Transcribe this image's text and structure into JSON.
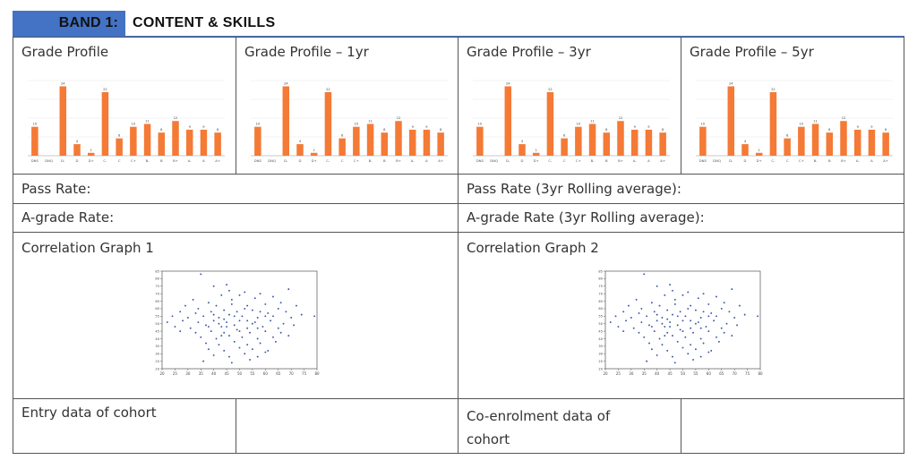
{
  "band": {
    "label": "BAND 1:",
    "title": "CONTENT & SKILLS"
  },
  "rows": {
    "grade_profiles": [
      "Grade Profile",
      "Grade Profile – 1yr",
      "Grade Profile – 3yr",
      "Grade Profile – 5yr"
    ],
    "pass_rate": "Pass Rate:",
    "pass_rate_rolling": "Pass Rate (3yr Rolling average):",
    "a_grade_rate": "A-grade Rate:",
    "a_grade_rate_rolling": "A-grade Rate (3yr Rolling average):",
    "correlation_1": "Correlation Graph 1",
    "correlation_2": "Correlation Graph 2",
    "entry_data": "Entry data of cohort",
    "coenrolment_data": "Co-enrolment data of cohort"
  },
  "colors": {
    "band_blue": "#4472c4",
    "bar_orange": "#f47a36",
    "dot_blue": "#3a56a8"
  },
  "chart_data": [
    {
      "type": "bar",
      "categories": [
        "DNS",
        "DNQ",
        "D-",
        "D",
        "D+",
        "C-",
        "C",
        "C+",
        "B-",
        "B",
        "B+",
        "A-",
        "A",
        "A+"
      ],
      "values": [
        10,
        0,
        24,
        4,
        1,
        22,
        6,
        10,
        11,
        8,
        12,
        9,
        9,
        8
      ],
      "ylim": [
        0,
        26
      ]
    },
    {
      "type": "bar",
      "categories": [
        "DNS",
        "DNQ",
        "D-",
        "D",
        "D+",
        "C-",
        "C",
        "C+",
        "B-",
        "B",
        "B+",
        "A-",
        "A",
        "A+"
      ],
      "values": [
        10,
        0,
        24,
        4,
        1,
        22,
        6,
        10,
        11,
        8,
        12,
        9,
        9,
        8
      ],
      "ylim": [
        0,
        26
      ]
    },
    {
      "type": "bar",
      "categories": [
        "DNS",
        "DNQ",
        "D-",
        "D",
        "D+",
        "C-",
        "C",
        "C+",
        "B-",
        "B",
        "B+",
        "A-",
        "A",
        "A+"
      ],
      "values": [
        10,
        0,
        24,
        4,
        1,
        22,
        6,
        10,
        11,
        8,
        12,
        9,
        9,
        8
      ],
      "ylim": [
        0,
        26
      ]
    },
    {
      "type": "bar",
      "categories": [
        "DNS",
        "DNQ",
        "D-",
        "D",
        "D+",
        "C-",
        "C",
        "C+",
        "B-",
        "B",
        "B+",
        "A-",
        "A",
        "A+"
      ],
      "values": [
        10,
        0,
        24,
        4,
        1,
        22,
        6,
        10,
        11,
        8,
        12,
        9,
        9,
        8
      ],
      "ylim": [
        0,
        26
      ]
    },
    {
      "type": "scatter",
      "xticks": [
        "20",
        "25",
        "30",
        "35",
        "40",
        "45",
        "50",
        "55",
        "60",
        "65",
        "70",
        "75",
        "80"
      ],
      "yticks": [
        "20",
        "25",
        "30",
        "35",
        "40",
        "45",
        "50",
        "55",
        "60",
        "65",
        "70",
        "75",
        "80",
        "85"
      ],
      "xlim": [
        20,
        80
      ],
      "ylim": [
        20,
        85
      ],
      "points": [
        [
          35,
          83
        ],
        [
          40,
          75
        ],
        [
          45,
          76
        ],
        [
          69,
          73
        ],
        [
          43,
          69
        ],
        [
          38,
          64
        ],
        [
          50,
          69
        ],
        [
          56,
          67
        ],
        [
          32,
          66
        ],
        [
          46,
          72
        ],
        [
          52,
          71
        ],
        [
          58,
          70
        ],
        [
          63,
          68
        ],
        [
          29,
          62
        ],
        [
          34,
          60
        ],
        [
          41,
          62
        ],
        [
          47,
          63
        ],
        [
          53,
          62
        ],
        [
          60,
          63
        ],
        [
          66,
          64
        ],
        [
          72,
          62
        ],
        [
          27,
          58
        ],
        [
          33,
          57
        ],
        [
          39,
          58
        ],
        [
          44,
          59
        ],
        [
          49,
          58
        ],
        [
          55,
          59
        ],
        [
          61,
          57
        ],
        [
          68,
          58
        ],
        [
          74,
          56
        ],
        [
          24,
          55
        ],
        [
          30,
          54
        ],
        [
          36,
          55
        ],
        [
          42,
          54
        ],
        [
          46,
          56
        ],
        [
          51,
          55
        ],
        [
          57,
          54
        ],
        [
          63,
          55
        ],
        [
          70,
          54
        ],
        [
          79,
          55
        ],
        [
          22,
          51
        ],
        [
          28,
          52
        ],
        [
          34,
          51
        ],
        [
          40,
          52
        ],
        [
          45,
          51
        ],
        [
          50,
          52
        ],
        [
          56,
          51
        ],
        [
          62,
          52
        ],
        [
          67,
          50
        ],
        [
          25,
          48
        ],
        [
          31,
          47
        ],
        [
          37,
          49
        ],
        [
          43,
          48
        ],
        [
          48,
          49
        ],
        [
          53,
          47
        ],
        [
          59,
          48
        ],
        [
          65,
          47
        ],
        [
          71,
          49
        ],
        [
          27,
          45
        ],
        [
          33,
          44
        ],
        [
          39,
          45
        ],
        [
          44,
          44
        ],
        [
          49,
          46
        ],
        [
          54,
          44
        ],
        [
          60,
          45
        ],
        [
          66,
          44
        ],
        [
          35,
          41
        ],
        [
          41,
          40
        ],
        [
          46,
          42
        ],
        [
          51,
          41
        ],
        [
          57,
          40
        ],
        [
          63,
          41
        ],
        [
          69,
          42
        ],
        [
          37,
          37
        ],
        [
          42,
          36
        ],
        [
          48,
          38
        ],
        [
          53,
          36
        ],
        [
          58,
          37
        ],
        [
          64,
          38
        ],
        [
          38,
          33
        ],
        [
          44,
          32
        ],
        [
          50,
          34
        ],
        [
          55,
          33
        ],
        [
          61,
          32
        ],
        [
          40,
          29
        ],
        [
          46,
          28
        ],
        [
          52,
          30
        ],
        [
          57,
          28
        ],
        [
          36,
          25
        ],
        [
          47,
          24
        ],
        [
          54,
          26
        ],
        [
          60,
          31
        ],
        [
          43,
          42
        ],
        [
          48,
          55
        ],
        [
          52,
          60
        ],
        [
          45,
          48
        ],
        [
          55,
          50
        ],
        [
          58,
          58
        ],
        [
          40,
          56
        ],
        [
          50,
          45
        ],
        [
          42,
          50
        ],
        [
          60,
          55
        ],
        [
          38,
          48
        ],
        [
          65,
          60
        ],
        [
          47,
          66
        ],
        [
          53,
          52
        ],
        [
          44,
          53
        ],
        [
          57,
          47
        ]
      ]
    },
    {
      "type": "scatter",
      "xticks": [
        "20",
        "25",
        "30",
        "35",
        "40",
        "45",
        "50",
        "55",
        "60",
        "65",
        "70",
        "75",
        "80"
      ],
      "yticks": [
        "20",
        "25",
        "30",
        "35",
        "40",
        "45",
        "50",
        "55",
        "60",
        "65",
        "70",
        "75",
        "80",
        "85"
      ],
      "xlim": [
        20,
        80
      ],
      "ylim": [
        20,
        85
      ],
      "points": [
        [
          35,
          83
        ],
        [
          40,
          75
        ],
        [
          45,
          76
        ],
        [
          69,
          73
        ],
        [
          43,
          69
        ],
        [
          38,
          64
        ],
        [
          50,
          69
        ],
        [
          56,
          67
        ],
        [
          32,
          66
        ],
        [
          46,
          72
        ],
        [
          52,
          71
        ],
        [
          58,
          70
        ],
        [
          63,
          68
        ],
        [
          29,
          62
        ],
        [
          34,
          60
        ],
        [
          41,
          62
        ],
        [
          47,
          63
        ],
        [
          53,
          62
        ],
        [
          60,
          63
        ],
        [
          66,
          64
        ],
        [
          72,
          62
        ],
        [
          27,
          58
        ],
        [
          33,
          57
        ],
        [
          39,
          58
        ],
        [
          44,
          59
        ],
        [
          49,
          58
        ],
        [
          55,
          59
        ],
        [
          61,
          57
        ],
        [
          68,
          58
        ],
        [
          74,
          56
        ],
        [
          24,
          55
        ],
        [
          30,
          54
        ],
        [
          36,
          55
        ],
        [
          42,
          54
        ],
        [
          46,
          56
        ],
        [
          51,
          55
        ],
        [
          57,
          54
        ],
        [
          63,
          55
        ],
        [
          70,
          54
        ],
        [
          79,
          55
        ],
        [
          22,
          51
        ],
        [
          28,
          52
        ],
        [
          34,
          51
        ],
        [
          40,
          52
        ],
        [
          45,
          51
        ],
        [
          50,
          52
        ],
        [
          56,
          51
        ],
        [
          62,
          52
        ],
        [
          67,
          50
        ],
        [
          25,
          48
        ],
        [
          31,
          47
        ],
        [
          37,
          49
        ],
        [
          43,
          48
        ],
        [
          48,
          49
        ],
        [
          53,
          47
        ],
        [
          59,
          48
        ],
        [
          65,
          47
        ],
        [
          71,
          49
        ],
        [
          27,
          45
        ],
        [
          33,
          44
        ],
        [
          39,
          45
        ],
        [
          44,
          44
        ],
        [
          49,
          46
        ],
        [
          54,
          44
        ],
        [
          60,
          45
        ],
        [
          66,
          44
        ],
        [
          35,
          41
        ],
        [
          41,
          40
        ],
        [
          46,
          42
        ],
        [
          51,
          41
        ],
        [
          57,
          40
        ],
        [
          63,
          41
        ],
        [
          69,
          42
        ],
        [
          37,
          37
        ],
        [
          42,
          36
        ],
        [
          48,
          38
        ],
        [
          53,
          36
        ],
        [
          58,
          37
        ],
        [
          64,
          38
        ],
        [
          38,
          33
        ],
        [
          44,
          32
        ],
        [
          50,
          34
        ],
        [
          55,
          33
        ],
        [
          61,
          32
        ],
        [
          40,
          29
        ],
        [
          46,
          28
        ],
        [
          52,
          30
        ],
        [
          57,
          28
        ],
        [
          36,
          25
        ],
        [
          47,
          24
        ],
        [
          54,
          26
        ],
        [
          60,
          31
        ],
        [
          43,
          42
        ],
        [
          48,
          55
        ],
        [
          52,
          60
        ],
        [
          45,
          48
        ],
        [
          55,
          50
        ],
        [
          58,
          58
        ],
        [
          40,
          56
        ],
        [
          50,
          45
        ],
        [
          42,
          50
        ],
        [
          60,
          55
        ],
        [
          38,
          48
        ],
        [
          65,
          60
        ],
        [
          47,
          66
        ],
        [
          53,
          52
        ],
        [
          44,
          53
        ],
        [
          57,
          47
        ]
      ]
    }
  ]
}
